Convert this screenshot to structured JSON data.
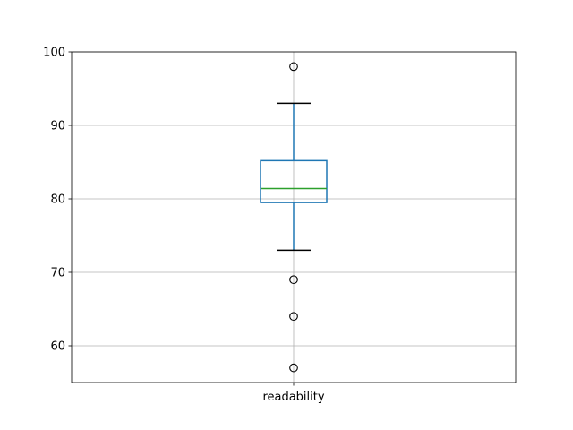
{
  "chart_data": {
    "type": "box",
    "title": "",
    "xlabel": "",
    "ylabel": "",
    "categories": [
      "readability"
    ],
    "boxes": [
      {
        "name": "readability",
        "whisker_low": 73,
        "q1": 79.5,
        "median": 81.4,
        "q3": 85.2,
        "whisker_high": 93,
        "outliers": [
          98,
          69,
          64,
          57
        ]
      }
    ],
    "ylim": [
      55,
      100
    ],
    "yticks": [
      60,
      70,
      80,
      90,
      100
    ],
    "grid": true,
    "colors": {
      "box": "#1f77b4",
      "median": "#2ca02c",
      "whisker_cap": "#000000",
      "grid": "#b0b0b0"
    }
  }
}
